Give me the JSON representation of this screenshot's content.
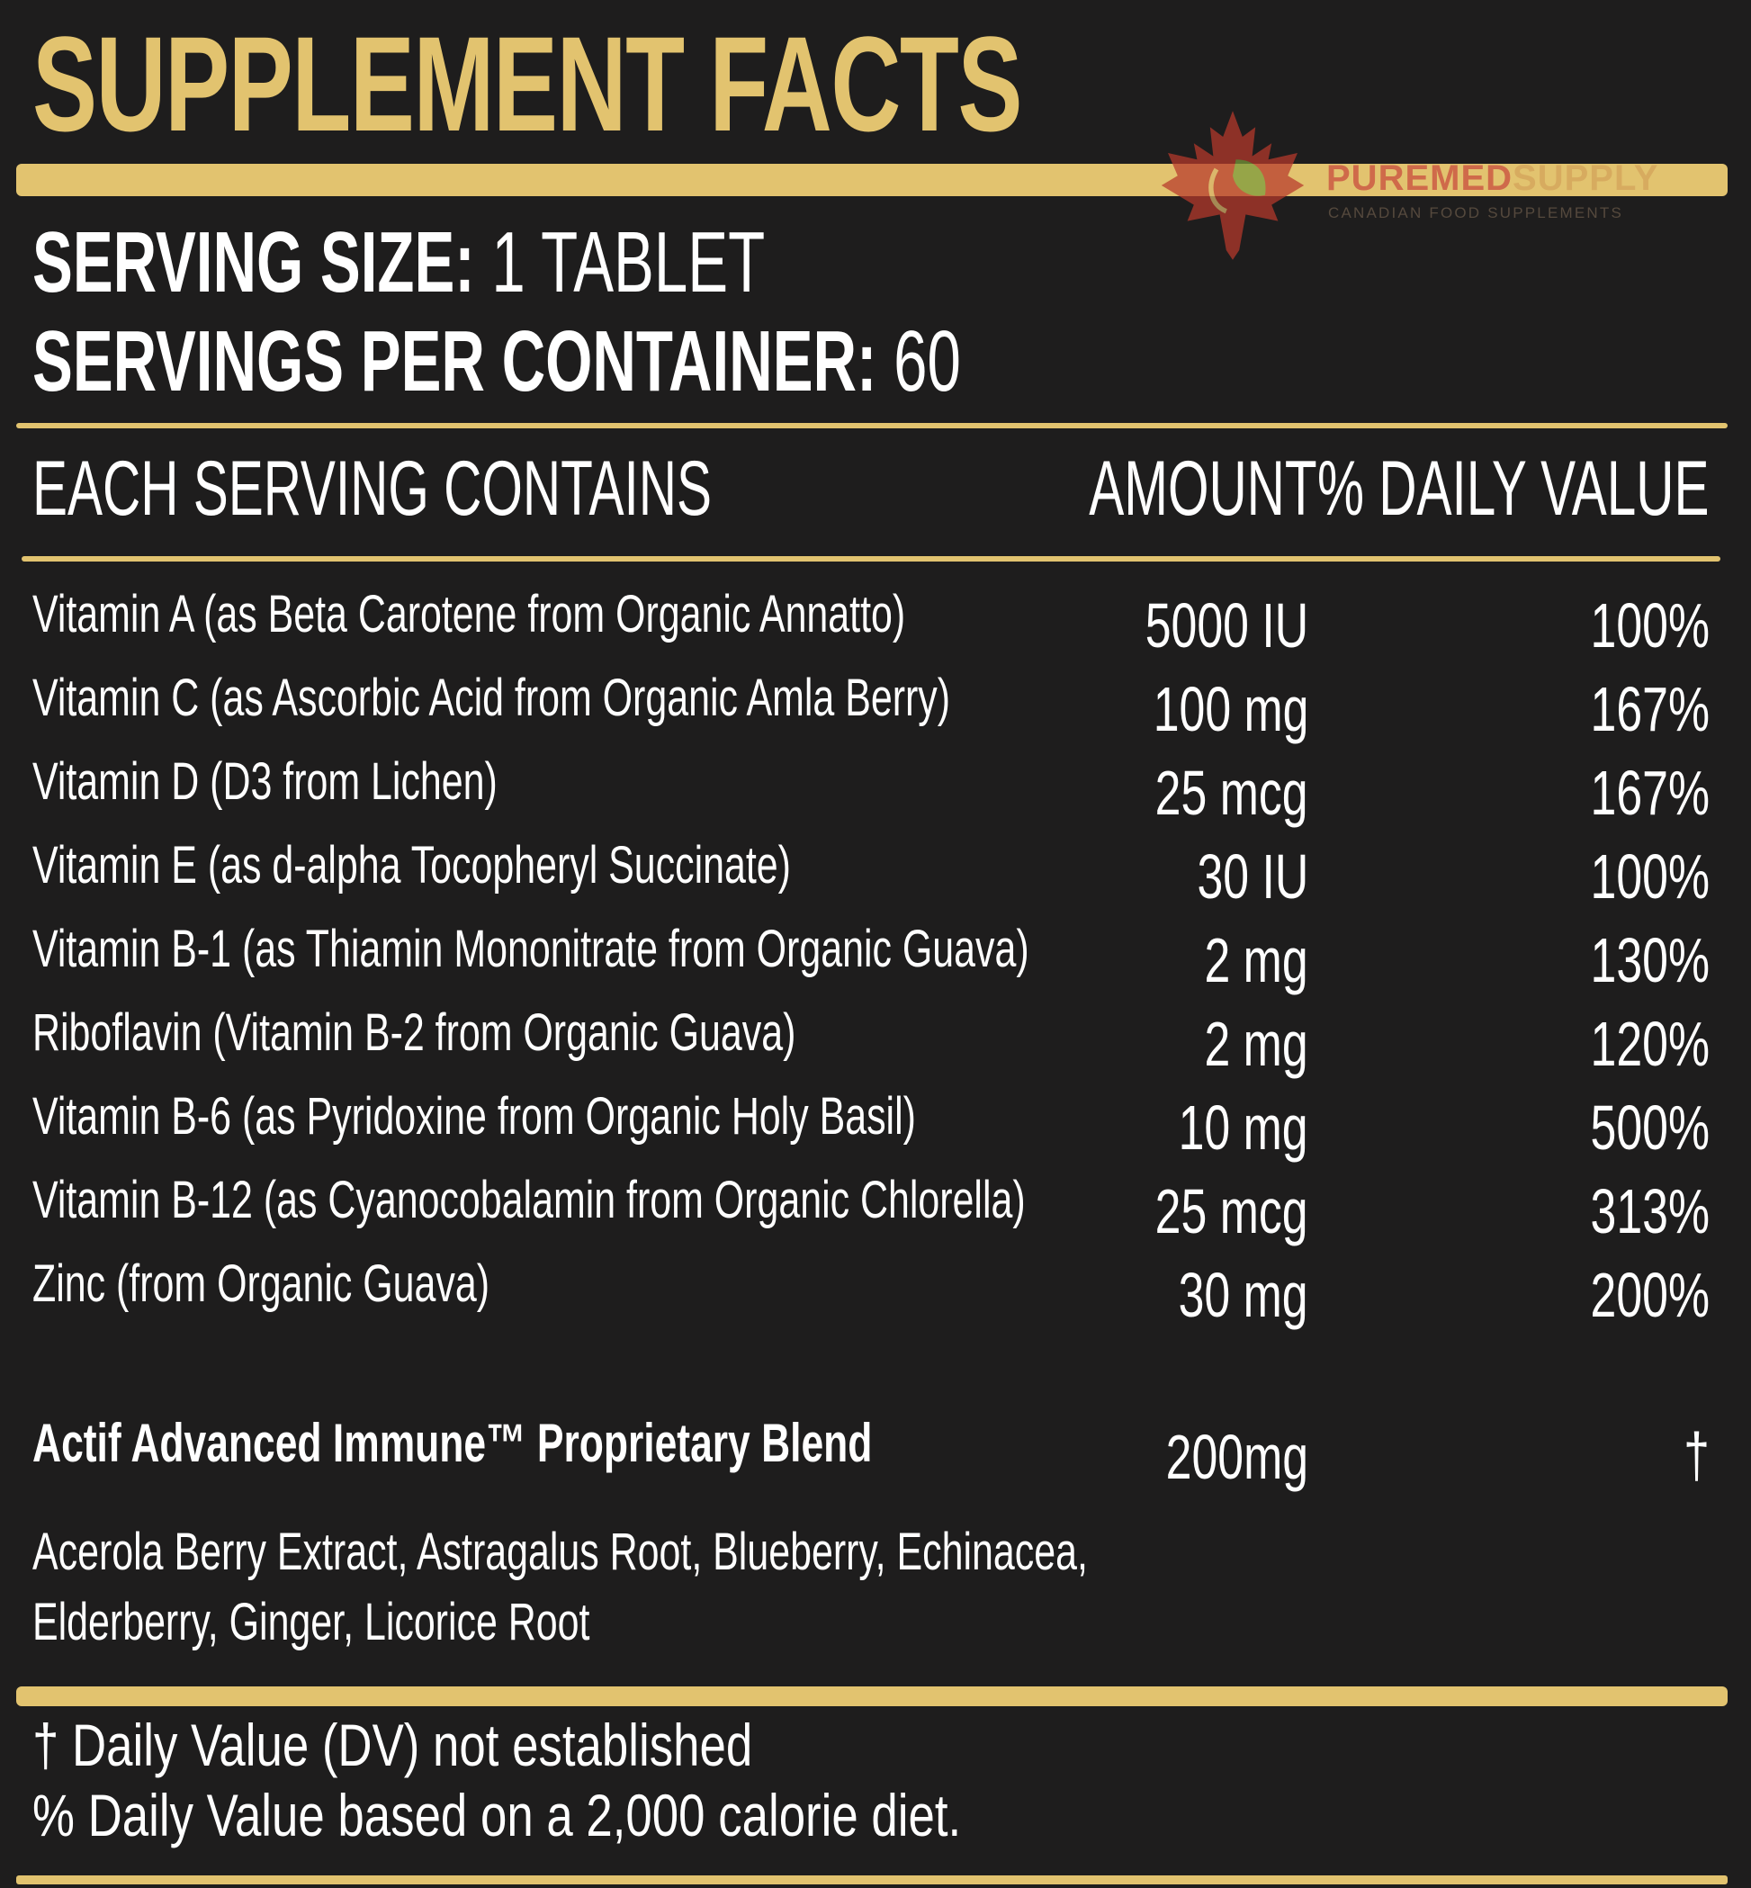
{
  "title": "SUPPLEMENT FACTS",
  "watermark": {
    "brand_part1": "PUREMED",
    "brand_part2": "SUPPLY",
    "tagline": "CANADIAN FOOD SUPPLEMENTS"
  },
  "serving": {
    "size_label": "SERVING SIZE:",
    "size_value": " 1 TABLET",
    "per_container_label": "SERVINGS PER CONTAINER:",
    "per_container_value": " 60"
  },
  "table_header": {
    "name": "EACH SERVING CONTAINS",
    "amount": "AMOUNT",
    "daily_value": "% DAILY VALUE"
  },
  "nutrients": [
    {
      "name": "Vitamin A (as Beta Carotene from Organic Annatto)",
      "amount": "5000 IU",
      "dv": "100%"
    },
    {
      "name": "Vitamin C (as Ascorbic Acid from Organic Amla Berry)",
      "amount": "100 mg",
      "dv": "167%"
    },
    {
      "name": "Vitamin D (D3 from Lichen)",
      "amount": "25 mcg",
      "dv": "167%"
    },
    {
      "name": "Vitamin E (as d-alpha Tocopheryl Succinate)",
      "amount": "30 IU",
      "dv": "100%"
    },
    {
      "name": "Vitamin B-1 (as Thiamin Mononitrate from Organic Guava)",
      "amount": "2 mg",
      "dv": "130%"
    },
    {
      "name": "Riboflavin (Vitamin B-2 from Organic Guava)",
      "amount": "2 mg",
      "dv": "120%"
    },
    {
      "name": "Vitamin B-6 (as Pyridoxine from Organic Holy Basil)",
      "amount": "10 mg",
      "dv": "500%"
    },
    {
      "name": "Vitamin B-12 (as Cyanocobalamin from Organic Chlorella)",
      "amount": "25 mcg",
      "dv": "313%"
    },
    {
      "name": "Zinc (from Organic Guava)",
      "amount": "30 mg",
      "dv": "200%"
    }
  ],
  "blend": {
    "name": "Actif Advanced Immune™ Proprietary Blend",
    "amount": "200mg",
    "dv": "†",
    "ingredients_line1": "Acerola Berry Extract, Astragalus Root, Blueberry, Echinacea,",
    "ingredients_line2": "Elderberry, Ginger, Licorice Root"
  },
  "footnotes": {
    "line1": "† Daily Value (DV) not established",
    "line2": "% Daily Value based on a 2,000 calorie diet."
  },
  "colors": {
    "background": "#1e1d1d",
    "accent_gold": "#e2c36f",
    "text": "#ffffff"
  }
}
